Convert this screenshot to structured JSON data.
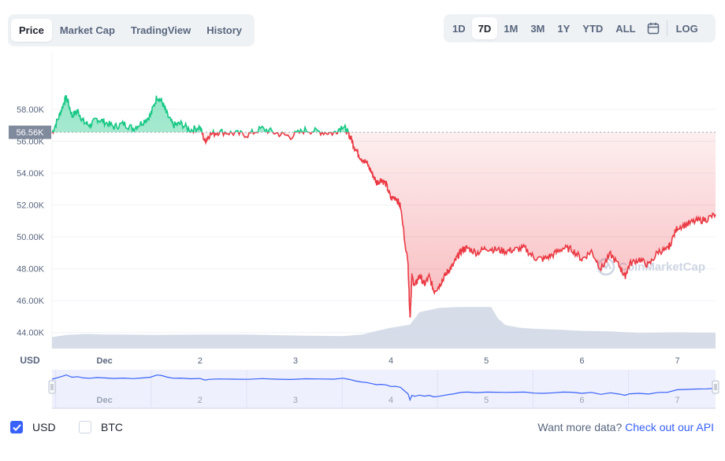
{
  "tabs": [
    {
      "label": "Price",
      "active": true
    },
    {
      "label": "Market Cap",
      "active": false
    },
    {
      "label": "TradingView",
      "active": false
    },
    {
      "label": "History",
      "active": false
    }
  ],
  "ranges": [
    {
      "label": "1D",
      "active": false
    },
    {
      "label": "7D",
      "active": true
    },
    {
      "label": "1M",
      "active": false
    },
    {
      "label": "3M",
      "active": false
    },
    {
      "label": "1Y",
      "active": false
    },
    {
      "label": "YTD",
      "active": false
    },
    {
      "label": "ALL",
      "active": false
    }
  ],
  "calendar_icon": "calendar-icon",
  "log_label": "LOG",
  "footer": {
    "usd_label": "USD",
    "usd_checked": true,
    "btc_label": "BTC",
    "btc_checked": false,
    "more_text": "Want more data?",
    "more_link": "Check out our API"
  },
  "colors": {
    "up": "#16c784",
    "down": "#ea3943",
    "volume": "#cfd6e4",
    "nav_line": "#3861fb",
    "accent": "#3861fb"
  },
  "chart_data": {
    "type": "line",
    "currency_label": "USD",
    "watermark": "CoinMarketCap",
    "reference_price": 56.56,
    "reference_label": "56.56K",
    "ylim": [
      43.0,
      61.5
    ],
    "y_ticks": [
      44,
      46,
      48,
      50,
      52,
      54,
      56,
      58
    ],
    "y_tick_labels": [
      "44.00K",
      "46.00K",
      "48.00K",
      "50.00K",
      "52.00K",
      "54.00K",
      "56.00K",
      "58.00K"
    ],
    "xlim": [
      0.45,
      7.4
    ],
    "x_ticks": [
      1,
      2,
      3,
      4,
      5,
      6,
      7
    ],
    "x_tick_labels": [
      "Dec",
      "2",
      "3",
      "4",
      "5",
      "6",
      "7"
    ],
    "series": [
      {
        "x": [
          0.45,
          0.52,
          0.58,
          0.6,
          0.66,
          0.72,
          0.78,
          0.85,
          0.92,
          1.0,
          1.1,
          1.2,
          1.3,
          1.4,
          1.48,
          1.55,
          1.6,
          1.66,
          1.72,
          1.8,
          1.9,
          2.0,
          2.05,
          2.1,
          2.2,
          2.35,
          2.5,
          2.65,
          2.8,
          2.95,
          3.1,
          3.25,
          3.4,
          3.5,
          3.55,
          3.58,
          3.62,
          3.68,
          3.75,
          3.8,
          3.85,
          3.9,
          3.95,
          4.0,
          4.05,
          4.1,
          4.18,
          4.2,
          4.22,
          4.25,
          4.3,
          4.35,
          4.4,
          4.45,
          4.5,
          4.55,
          4.6,
          4.65,
          4.7,
          4.75,
          4.8,
          4.9,
          5.0,
          5.1,
          5.2,
          5.3,
          5.4,
          5.5,
          5.6,
          5.7,
          5.8,
          5.9,
          6.0,
          6.1,
          6.2,
          6.3,
          6.4,
          6.45,
          6.5,
          6.6,
          6.7,
          6.8,
          6.9,
          6.92,
          7.0,
          7.1,
          7.2,
          7.3,
          7.4
        ],
        "y": [
          56.5,
          57.5,
          58.5,
          58.8,
          57.6,
          57.9,
          57.2,
          57.0,
          57.4,
          57.2,
          56.9,
          57.1,
          56.8,
          57.2,
          57.6,
          58.8,
          58.5,
          57.6,
          57.0,
          57.1,
          56.7,
          56.9,
          56.0,
          56.4,
          56.6,
          56.5,
          56.4,
          56.8,
          56.5,
          56.3,
          56.7,
          56.6,
          56.5,
          57.0,
          56.5,
          56.2,
          55.6,
          55.0,
          54.6,
          54.0,
          53.4,
          53.6,
          53.3,
          52.4,
          52.5,
          51.9,
          48.2,
          44.9,
          47.5,
          46.9,
          47.6,
          47.0,
          47.5,
          46.6,
          46.9,
          47.4,
          47.9,
          48.2,
          48.8,
          49.2,
          49.3,
          49.0,
          49.3,
          49.2,
          49.1,
          49.2,
          49.3,
          48.7,
          48.6,
          48.9,
          49.3,
          49.2,
          48.6,
          49.1,
          48.0,
          48.9,
          48.1,
          47.5,
          48.3,
          48.6,
          48.2,
          49.1,
          49.2,
          49.5,
          50.6,
          50.8,
          51.0,
          51.1,
          51.4
        ]
      }
    ],
    "volume": {
      "x": [
        0.45,
        0.6,
        0.8,
        1.0,
        1.2,
        1.5,
        2.0,
        2.5,
        3.0,
        3.5,
        3.7,
        3.85,
        4.0,
        4.2,
        4.3,
        4.5,
        4.7,
        4.9,
        5.05,
        5.12,
        5.2,
        5.35,
        5.5,
        5.8,
        6.0,
        6.3,
        6.6,
        7.0,
        7.4
      ],
      "y": [
        0.22,
        0.26,
        0.28,
        0.27,
        0.27,
        0.26,
        0.27,
        0.27,
        0.25,
        0.24,
        0.27,
        0.34,
        0.4,
        0.46,
        0.7,
        0.78,
        0.8,
        0.8,
        0.8,
        0.58,
        0.45,
        0.4,
        0.38,
        0.36,
        0.34,
        0.33,
        0.3,
        0.31,
        0.3
      ]
    },
    "navigator": {
      "x_tick_labels": [
        "Dec",
        "2",
        "3",
        "4",
        "5",
        "6",
        "7"
      ]
    }
  }
}
